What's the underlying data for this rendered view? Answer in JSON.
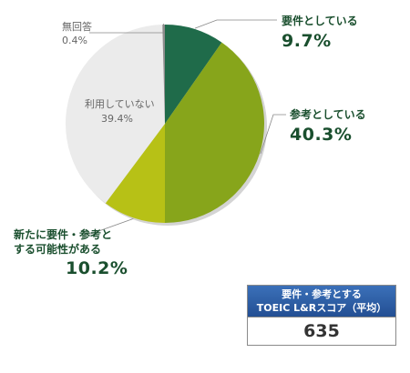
{
  "chart_data": {
    "type": "pie",
    "slices": [
      {
        "name": "要件としている",
        "value": 9.7,
        "value_label": "9.7%",
        "color": "#1f6b4a"
      },
      {
        "name": "参考としている",
        "value": 40.3,
        "value_label": "40.3%",
        "color": "#87a51b"
      },
      {
        "name": "新たに要件・参考とする可能性がある",
        "name_lines": [
          "新たに要件・参考と",
          "する可能性がある"
        ],
        "value": 10.2,
        "value_label": "10.2%",
        "color": "#b7c116"
      },
      {
        "name": "利用していない",
        "value": 39.4,
        "value_label": "39.4%",
        "color": "#ebebeb"
      },
      {
        "name": "無回答",
        "value": 0.4,
        "value_label": "0.4%",
        "color": "#8c8c8c"
      }
    ]
  },
  "score_box": {
    "title_line1": "要件・参考とする",
    "title_line2": "TOEIC L&Rスコア（平均）",
    "value": "635"
  }
}
